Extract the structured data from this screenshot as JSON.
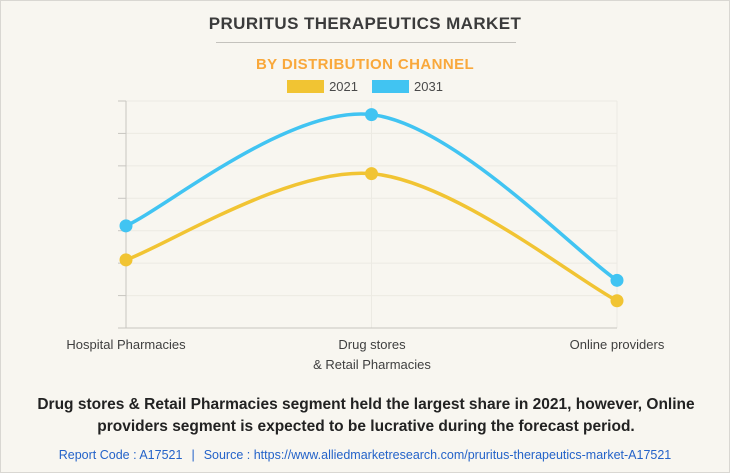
{
  "chart_data": {
    "type": "line",
    "title": "PRURITUS THERAPEUTICS MARKET",
    "subtitle": "BY DISTRIBUTION CHANNEL",
    "categories": [
      "Hospital Pharmacies",
      "Drug stores & Retail Pharmacies",
      "Online providers"
    ],
    "tick_labels": [
      "Hospital Pharmacies",
      "Drug stores\n& Retail Pharmacies",
      "Online providers"
    ],
    "series": [
      {
        "name": "2021",
        "color": "#F1C433",
        "values": [
          30,
          68,
          12
        ]
      },
      {
        "name": "2031",
        "color": "#41C4F2",
        "values": [
          45,
          94,
          21
        ]
      }
    ],
    "xlabel": "",
    "ylabel": "",
    "ylim": [
      0,
      100
    ],
    "y_tick_labels_shown": false,
    "curve": "smooth",
    "legend_position": "top",
    "grid": {
      "horizontal_lines": 8,
      "vertical_lines_at_categories": true,
      "color": "#ECEAE3"
    },
    "axis_color": "#C8C6C1",
    "marker_radius": 6.5,
    "line_width": 3.5
  },
  "description": "Drug stores & Retail Pharmacies segment held the largest share in 2021, however, Online providers segment is expected to be lucrative during the forecast period.",
  "footer": {
    "report_code": "Report Code : A17521",
    "separator": "|",
    "source_label": "Source :",
    "source_url": "https://www.alliedmarketresearch.com/pruritus-therapeutics-market-A17521"
  },
  "colors": {
    "background": "#F8F6F0",
    "border": "#D9D7D2",
    "title_text": "#3B3B3B",
    "subtitle_text": "#F9A83B",
    "legend_text": "#4A4A4A",
    "axis_label_text": "#3F3F3F",
    "description_text": "#222222",
    "footer_text": "#2463C9"
  }
}
